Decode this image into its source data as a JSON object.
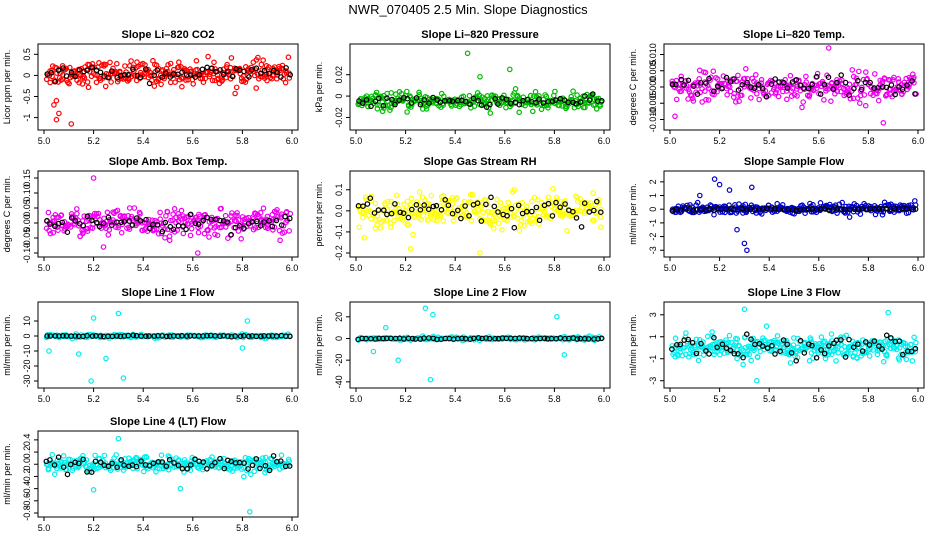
{
  "figure": {
    "title": "NWR_070405  2.5 Min. Slope Diagnostics"
  },
  "chart_data": [
    {
      "type": "scatter",
      "title": "Slope Li–820 CO2",
      "ylabel": "Licor ppm per min.",
      "xlim": [
        5.0,
        6.0
      ],
      "ylim": [
        -1.2,
        0.65
      ],
      "xticks": [
        5.0,
        5.2,
        5.4,
        5.6,
        5.8,
        6.0
      ],
      "xtick_labels": [
        "5.0",
        "5.2",
        "5.4",
        "5.6",
        "5.8",
        "6.0"
      ],
      "yticks": [
        -1,
        -0.5,
        0,
        0.5
      ],
      "ytick_labels": [
        "-1",
        "-0.5",
        "0",
        "0.5"
      ],
      "color": "#ff0000",
      "series": [
        {
          "name": "all",
          "center": 0.05,
          "spread": 0.25,
          "n": 300,
          "outliers": [
            {
              "x": 5.05,
              "y": -0.6
            },
            {
              "x": 5.06,
              "y": -0.9
            },
            {
              "x": 5.05,
              "y": -1.05
            },
            {
              "x": 5.11,
              "y": -1.15
            },
            {
              "x": 5.04,
              "y": -0.7
            }
          ]
        },
        {
          "name": "black",
          "center": 0.05,
          "spread": 0.15,
          "n": 60
        }
      ]
    },
    {
      "type": "scatter",
      "title": "Slope Li–820 Pressure",
      "ylabel": "kPa per min.",
      "xlim": [
        5.0,
        6.0
      ],
      "ylim": [
        -0.028,
        0.045
      ],
      "xticks": [
        5.0,
        5.2,
        5.4,
        5.6,
        5.8,
        6.0
      ],
      "xtick_labels": [
        "5.0",
        "5.2",
        "5.4",
        "5.6",
        "5.8",
        "6.0"
      ],
      "yticks": [
        -0.02,
        0,
        0.02
      ],
      "ytick_labels": [
        "-0.02",
        "0",
        "0.02"
      ],
      "color": "#00bb00",
      "series": [
        {
          "name": "all",
          "center": -0.005,
          "spread": 0.007,
          "n": 300,
          "outliers": [
            {
              "x": 5.45,
              "y": 0.04
            },
            {
              "x": 5.5,
              "y": 0.018
            },
            {
              "x": 5.62,
              "y": 0.025
            }
          ]
        },
        {
          "name": "black",
          "center": -0.005,
          "spread": 0.004,
          "n": 60
        }
      ]
    },
    {
      "type": "scatter",
      "title": "Slope Li–820 Temp.",
      "ylabel": "degrees C per min.",
      "xlim": [
        5.0,
        6.0
      ],
      "ylim": [
        -0.012,
        0.012
      ],
      "xticks": [
        5.0,
        5.2,
        5.4,
        5.6,
        5.8,
        6.0
      ],
      "xtick_labels": [
        "5.0",
        "5.2",
        "5.4",
        "5.6",
        "5.8",
        "6.0"
      ],
      "yticks": [
        -0.01,
        -0.005,
        0,
        0.005,
        0.01
      ],
      "ytick_labels": [
        "-0.010",
        "-0.005",
        "0.000",
        "0.005",
        "0.010"
      ],
      "color": "#ee00ee",
      "series": [
        {
          "name": "all",
          "center": 0.0,
          "spread": 0.004,
          "n": 300,
          "outliers": [
            {
              "x": 5.64,
              "y": 0.012
            },
            {
              "x": 5.86,
              "y": -0.011
            },
            {
              "x": 5.02,
              "y": -0.009
            }
          ]
        },
        {
          "name": "black",
          "center": 0.0,
          "spread": 0.003,
          "n": 60
        }
      ]
    },
    {
      "type": "scatter",
      "title": "Slope Amb. Box Temp.",
      "ylabel": "degrees C per min.",
      "xlim": [
        5.0,
        6.0
      ],
      "ylim": [
        -0.1,
        0.16
      ],
      "xticks": [
        5.0,
        5.2,
        5.4,
        5.6,
        5.8,
        6.0
      ],
      "xtick_labels": [
        "5.0",
        "5.2",
        "5.4",
        "5.6",
        "5.8",
        "6.0"
      ],
      "yticks": [
        -0.1,
        -0.05,
        0,
        0.05,
        0.1,
        0.15
      ],
      "ytick_labels": [
        "-0.10",
        "-0.05",
        "0.00",
        "0.05",
        "0.10",
        "0.15"
      ],
      "color": "#ee00ee",
      "series": [
        {
          "name": "all",
          "center": 0.0,
          "spread": 0.04,
          "n": 300,
          "outliers": [
            {
              "x": 5.2,
              "y": 0.15
            },
            {
              "x": 5.24,
              "y": -0.08
            },
            {
              "x": 5.62,
              "y": -0.1
            }
          ]
        },
        {
          "name": "black",
          "center": 0.0,
          "spread": 0.025,
          "n": 60
        }
      ]
    },
    {
      "type": "scatter",
      "title": "Slope Gas Stream RH",
      "ylabel": "percent per min.",
      "xlim": [
        5.0,
        6.0
      ],
      "ylim": [
        -0.2,
        0.17
      ],
      "xticks": [
        5.0,
        5.2,
        5.4,
        5.6,
        5.8,
        6.0
      ],
      "xtick_labels": [
        "5.0",
        "5.2",
        "5.4",
        "5.6",
        "5.8",
        "6.0"
      ],
      "yticks": [
        -0.2,
        -0.1,
        0,
        0.1
      ],
      "ytick_labels": [
        "-0.2",
        "-0.1",
        "0.0",
        "0.1"
      ],
      "color": "#ffff00",
      "series": [
        {
          "name": "all",
          "center": 0.0,
          "spread": 0.07,
          "n": 300,
          "outliers": [
            {
              "x": 5.22,
              "y": -0.18
            },
            {
              "x": 5.5,
              "y": -0.2
            }
          ]
        },
        {
          "name": "black",
          "center": 0.0,
          "spread": 0.06,
          "n": 60
        }
      ]
    },
    {
      "type": "scatter",
      "title": "Slope Sample Flow",
      "ylabel": "ml/min per min.",
      "xlim": [
        5.0,
        6.0
      ],
      "ylim": [
        -3.2,
        2.5
      ],
      "xticks": [
        5.0,
        5.2,
        5.4,
        5.6,
        5.8,
        6.0
      ],
      "xtick_labels": [
        "5.0",
        "5.2",
        "5.4",
        "5.6",
        "5.8",
        "6.0"
      ],
      "yticks": [
        -3,
        -2,
        -1,
        0,
        1,
        2
      ],
      "ytick_labels": [
        "-3",
        "-2",
        "-1",
        "0",
        "1",
        "2"
      ],
      "color": "#0000cc",
      "series": [
        {
          "name": "all",
          "center": 0.0,
          "spread": 0.35,
          "n": 300,
          "outliers": [
            {
              "x": 5.18,
              "y": 2.2
            },
            {
              "x": 5.2,
              "y": 1.8
            },
            {
              "x": 5.24,
              "y": 1.4
            },
            {
              "x": 5.27,
              "y": -1.5
            },
            {
              "x": 5.3,
              "y": -2.5
            },
            {
              "x": 5.31,
              "y": -3.0
            },
            {
              "x": 5.33,
              "y": 1.6
            },
            {
              "x": 5.12,
              "y": 1.0
            }
          ]
        },
        {
          "name": "black",
          "center": 0.0,
          "spread": 0.1,
          "n": 60
        }
      ]
    },
    {
      "type": "scatter",
      "title": "Slope Line 1 Flow",
      "ylabel": "ml/min per min.",
      "xlim": [
        5.0,
        6.0
      ],
      "ylim": [
        -32,
        20
      ],
      "xticks": [
        5.0,
        5.2,
        5.4,
        5.6,
        5.8,
        6.0
      ],
      "xtick_labels": [
        "5.0",
        "5.2",
        "5.4",
        "5.6",
        "5.8",
        "6.0"
      ],
      "yticks": [
        -30,
        -20,
        -10,
        0,
        10
      ],
      "ytick_labels": [
        "-30",
        "-20",
        "-10",
        "0",
        "10"
      ],
      "color": "#00eeee",
      "series": [
        {
          "name": "all",
          "center": 0.0,
          "spread": 1.0,
          "n": 200,
          "outliers": [
            {
              "x": 5.19,
              "y": -30
            },
            {
              "x": 5.32,
              "y": -28
            },
            {
              "x": 5.2,
              "y": 12
            },
            {
              "x": 5.3,
              "y": 15
            },
            {
              "x": 5.02,
              "y": -10
            },
            {
              "x": 5.82,
              "y": 10
            },
            {
              "x": 5.8,
              "y": -8
            },
            {
              "x": 5.25,
              "y": -15
            },
            {
              "x": 5.14,
              "y": -12
            }
          ]
        },
        {
          "name": "black",
          "center": 0.0,
          "spread": 0.3,
          "n": 60
        }
      ]
    },
    {
      "type": "scatter",
      "title": "Slope Line 2 Flow",
      "ylabel": "ml/min per min.",
      "xlim": [
        5.0,
        6.0
      ],
      "ylim": [
        -42,
        30
      ],
      "xticks": [
        5.0,
        5.2,
        5.4,
        5.6,
        5.8,
        6.0
      ],
      "xtick_labels": [
        "5.0",
        "5.2",
        "5.4",
        "5.6",
        "5.8",
        "6.0"
      ],
      "yticks": [
        -40,
        -20,
        0,
        20
      ],
      "ytick_labels": [
        "-40",
        "-20",
        "0",
        "20"
      ],
      "color": "#00eeee",
      "series": [
        {
          "name": "all",
          "center": 0.0,
          "spread": 1.5,
          "n": 200,
          "outliers": [
            {
              "x": 5.28,
              "y": 28
            },
            {
              "x": 5.31,
              "y": 22
            },
            {
              "x": 5.3,
              "y": -38
            },
            {
              "x": 5.17,
              "y": -20
            },
            {
              "x": 5.81,
              "y": 20
            },
            {
              "x": 5.84,
              "y": -15
            },
            {
              "x": 5.12,
              "y": 10
            },
            {
              "x": 5.07,
              "y": -12
            }
          ]
        },
        {
          "name": "black",
          "center": 0.0,
          "spread": 0.5,
          "n": 60
        }
      ]
    },
    {
      "type": "scatter",
      "title": "Slope Line 3 Flow",
      "ylabel": "ml/min per min.",
      "xlim": [
        5.0,
        6.0
      ],
      "ylim": [
        -3.3,
        3.8
      ],
      "xticks": [
        5.0,
        5.2,
        5.4,
        5.6,
        5.8,
        6.0
      ],
      "xtick_labels": [
        "5.0",
        "5.2",
        "5.4",
        "5.6",
        "5.8",
        "6.0"
      ],
      "yticks": [
        -3,
        -1,
        1,
        3
      ],
      "ytick_labels": [
        "-3",
        "-1",
        "1",
        "3"
      ],
      "color": "#00eeee",
      "series": [
        {
          "name": "all",
          "center": 0.0,
          "spread": 1.0,
          "n": 350,
          "outliers": [
            {
              "x": 5.3,
              "y": 3.5
            },
            {
              "x": 5.88,
              "y": 3.2
            },
            {
              "x": 5.35,
              "y": -3.0
            }
          ]
        },
        {
          "name": "black",
          "center": 0.0,
          "spread": 0.9,
          "n": 60
        }
      ]
    },
    {
      "type": "scatter",
      "title": "Slope Line 4 (LT) Flow",
      "ylabel": "ml/min per min.",
      "xlim": [
        5.0,
        6.0
      ],
      "ylim": [
        -0.8,
        0.48
      ],
      "xticks": [
        5.0,
        5.2,
        5.4,
        5.6,
        5.8,
        6.0
      ],
      "xtick_labels": [
        "5.0",
        "5.2",
        "5.4",
        "5.6",
        "5.8",
        "6.0"
      ],
      "yticks": [
        -0.8,
        -0.6,
        -0.4,
        -0.2,
        0,
        0.2,
        0.4
      ],
      "ytick_labels": [
        "-0.8",
        "-0.6",
        "-0.4",
        "-0.2",
        "0.0",
        "0.2",
        "0.4"
      ],
      "color": "#00eeee",
      "series": [
        {
          "name": "all",
          "center": 0.0,
          "spread": 0.12,
          "n": 300,
          "outliers": [
            {
              "x": 5.3,
              "y": 0.42
            },
            {
              "x": 5.83,
              "y": -0.78
            },
            {
              "x": 5.2,
              "y": -0.42
            },
            {
              "x": 5.55,
              "y": -0.4
            }
          ]
        },
        {
          "name": "black",
          "center": 0.0,
          "spread": 0.1,
          "n": 60
        }
      ]
    }
  ]
}
